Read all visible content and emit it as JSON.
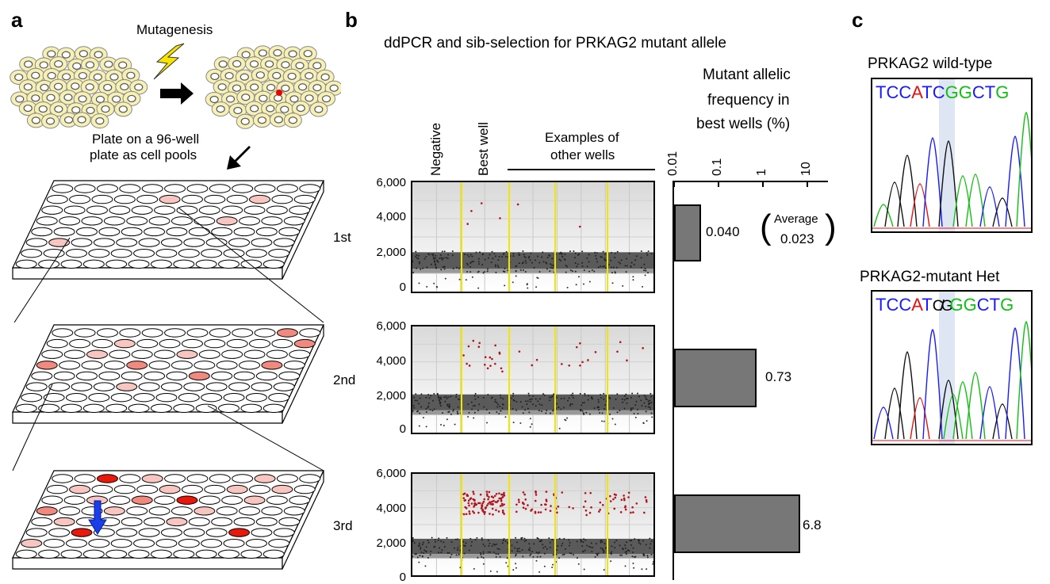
{
  "panels": {
    "a": "a",
    "b": "b",
    "c": "c"
  },
  "panel_a": {
    "mutagenesis_label": "Mutagenesis",
    "plate_label_line1": "Plate on a 96-well",
    "plate_label_line2": "plate as cell pools",
    "rounds": [
      "1st",
      "2nd",
      "3rd"
    ]
  },
  "panel_b": {
    "title": "ddPCR and sib-selection for PRKAG2 mutant allele",
    "col_negative": "Negative",
    "col_best": "Best well",
    "col_other_line1": "Examples of",
    "col_other_line2": "other wells",
    "yticks": [
      "6,000",
      "4,000",
      "2,000",
      "0"
    ],
    "bar_title_line1": "Mutant allelic",
    "bar_title_line2": "frequency in",
    "bar_title_line3": "best wells (%)",
    "bar_ticks": [
      "0.01",
      "0.1",
      "1",
      "10"
    ],
    "bar_labels": [
      "0.040",
      "0.73",
      "6.8"
    ],
    "average_label": "Average",
    "average_value": "0.023"
  },
  "chart_data": {
    "type": "bar",
    "categories": [
      "1st",
      "2nd",
      "3rd"
    ],
    "values": [
      0.04,
      0.73,
      6.8
    ],
    "xscale": "log",
    "xlim": [
      0.01,
      10
    ],
    "title": "Mutant allelic frequency in best wells (%)"
  },
  "panel_c": {
    "wt_title": "PRKAG2 wild-type",
    "mut_title": "PRKAG2-mutant Het",
    "wt_seq": [
      "T",
      "C",
      "C",
      "A",
      "T",
      "C",
      "G",
      "G",
      "C",
      "T",
      "G"
    ],
    "mut_seq": [
      "T",
      "C",
      "C",
      "A",
      "T",
      "C/G",
      "G",
      "G",
      "C",
      "T",
      "G"
    ]
  },
  "colors": {
    "highlight": "#dfe6f3",
    "best_well": "#e8180c",
    "light_well": "#f7c6c0",
    "yellow_line": "#f2e600",
    "bar": "#777777"
  }
}
